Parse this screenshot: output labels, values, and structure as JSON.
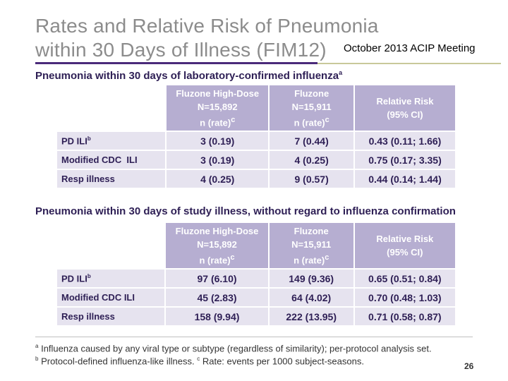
{
  "title": {
    "line1": "Rates and Relative Risk of Pneumonia",
    "line2": "within 30 Days of Illness (FIM12)"
  },
  "meeting_label": "October 2013 ACIP Meeting",
  "section1": {
    "heading": "Pneumonia within 30 days of laboratory-confirmed influenza",
    "heading_sup": "a",
    "columns": [
      {
        "line1": "Fluzone High-Dose",
        "line2": "N=15,892",
        "line3": "n (rate)",
        "sup": "c"
      },
      {
        "line1": "Fluzone",
        "line2": "N=15,911",
        "line3": "n (rate)",
        "sup": "c"
      },
      {
        "line1": "Relative Risk",
        "line2": "(95% CI)"
      }
    ],
    "rows": [
      {
        "label": "PD ILI",
        "sup": "b",
        "hd": "3 (0.19)",
        "std": "7 (0.44)",
        "rr": "0.43 (0.11; 1.66)"
      },
      {
        "label": "Modified CDC  ILI",
        "sup": "",
        "hd": "3 (0.19)",
        "std": "4 (0.25)",
        "rr": "0.75 (0.17; 3.35)"
      },
      {
        "label": "Resp illness",
        "sup": "",
        "hd": "4 (0.25)",
        "std": "9 (0.57)",
        "rr": "0.44 (0.14; 1.44)"
      }
    ]
  },
  "section2": {
    "heading": "Pneumonia within 30 days of study illness, without regard to influenza confirmation",
    "columns": [
      {
        "line1": "Fluzone High-Dose",
        "line2": "N=15,892",
        "line3": "n (rate)",
        "sup": "c"
      },
      {
        "line1": "Fluzone",
        "line2": "N=15,911",
        "line3": "n (rate)",
        "sup": "c"
      },
      {
        "line1": "Relative Risk",
        "line2": "(95% CI)"
      }
    ],
    "rows": [
      {
        "label": "PD ILI",
        "sup": "b",
        "hd": "97 (6.10)",
        "std": "149 (9.36)",
        "rr": "0.65 (0.51; 0.84)"
      },
      {
        "label": "Modified CDC ILI",
        "sup": "",
        "hd": "45 (2.83)",
        "std": "64 (4.02)",
        "rr": "0.70 (0.48; 1.03)"
      },
      {
        "label": "Resp illness",
        "sup": "",
        "hd": "158 (9.94)",
        "std": "222 (13.95)",
        "rr": "0.71 (0.58; 0.87)"
      }
    ]
  },
  "footnotes": {
    "a_mark": "a",
    "a_text": "Influenza caused by any viral type or subtype (regardless of similarity); per-protocol analysis set.",
    "b_mark": "b",
    "b_text": "Protocol-defined influenza-like illness.",
    "c_mark": "c",
    "c_text": "Rate: events per 1000 subject-seasons."
  },
  "page_number": "26"
}
